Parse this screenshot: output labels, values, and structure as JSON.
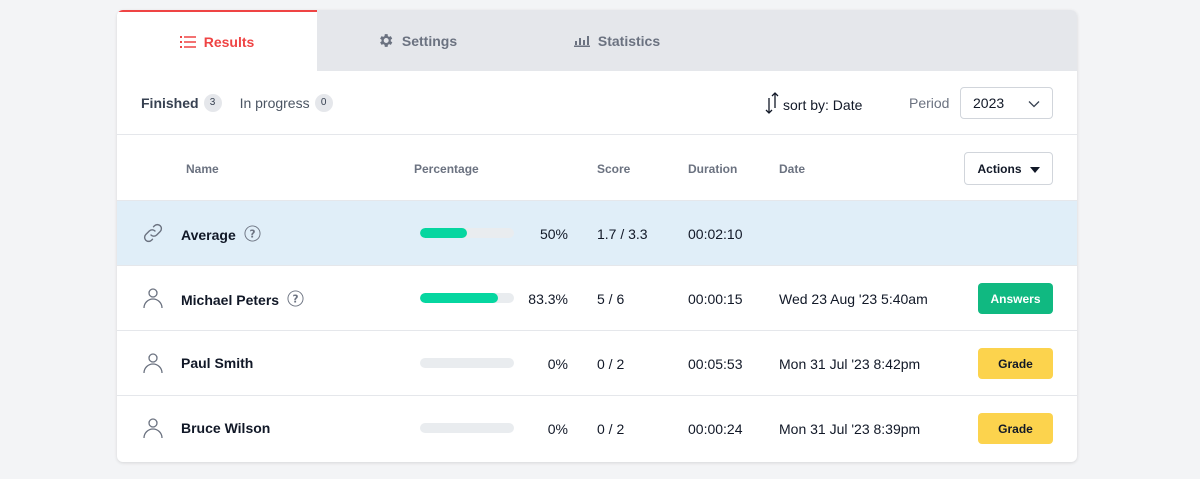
{
  "tabs": [
    {
      "label": "Results",
      "icon": "list-icon",
      "active": true
    },
    {
      "label": "Settings",
      "icon": "gear-icon",
      "active": false
    },
    {
      "label": "Statistics",
      "icon": "bar-chart-icon",
      "active": false
    }
  ],
  "filters": {
    "finished": {
      "label": "Finished",
      "count": "3"
    },
    "in_progress": {
      "label": "In progress",
      "count": "0"
    },
    "sort_label": "sort by: Date",
    "period_label": "Period",
    "period_value": "2023"
  },
  "table": {
    "headers": {
      "name": "Name",
      "percentage": "Percentage",
      "score": "Score",
      "duration": "Duration",
      "date": "Date"
    },
    "actions_label": "Actions",
    "rows": [
      {
        "name": "Average",
        "percent_text": "50%",
        "percent": 0.5,
        "score": "1.7 / 3.3",
        "duration": "00:02:10",
        "date": "",
        "button": ""
      },
      {
        "name": "Michael Peters",
        "percent_text": "83.3%",
        "percent": 0.833,
        "score": "5 / 6",
        "duration": "00:00:15",
        "date": "Wed 23 Aug '23 5:40am",
        "button": "Answers"
      },
      {
        "name": "Paul Smith",
        "percent_text": "0%",
        "percent": 0,
        "score": "0 / 2",
        "duration": "00:05:53",
        "date": "Mon 31 Jul '23 8:42pm",
        "button": "Grade"
      },
      {
        "name": "Bruce Wilson",
        "percent_text": "0%",
        "percent": 0,
        "score": "0 / 2",
        "duration": "00:00:24",
        "date": "Mon 31 Jul '23 8:39pm",
        "button": "Grade"
      }
    ]
  },
  "colors": {
    "accent": "#ef4444",
    "progress": "#06d6a0",
    "answers": "#10b981",
    "grade": "#fcd34d",
    "average_row": "#e0eef8"
  }
}
